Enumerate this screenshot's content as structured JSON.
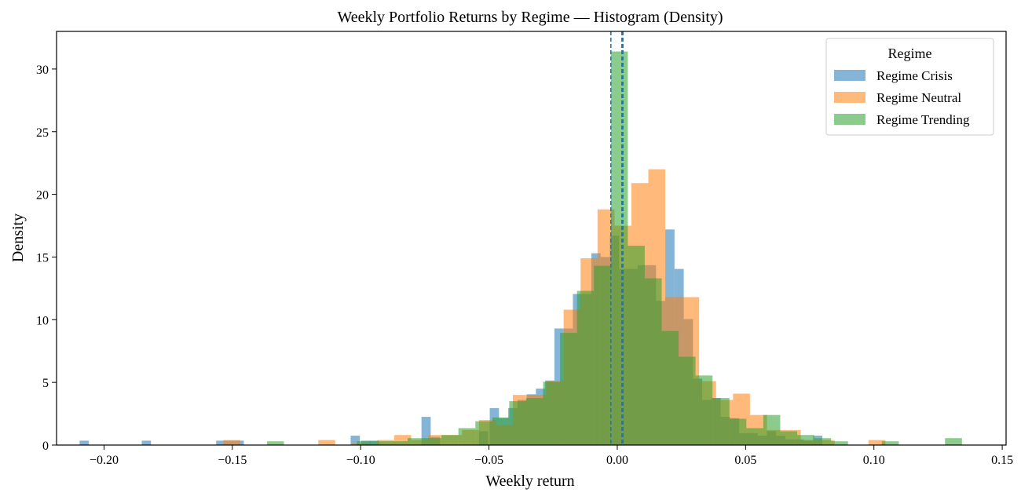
{
  "chart_data": {
    "type": "histogram",
    "title": "Weekly Portfolio Returns by Regime — Histogram (Density)",
    "xlabel": "Weekly return",
    "ylabel": "Density",
    "xlim": [
      -0.2185,
      0.1515
    ],
    "ylim": [
      0,
      33
    ],
    "xticks": [
      -0.2,
      -0.15,
      -0.1,
      -0.05,
      0.0,
      0.05,
      0.1,
      0.15
    ],
    "xtick_labels": [
      "−0.20",
      "−0.15",
      "−0.10",
      "−0.05",
      "0.00",
      "0.05",
      "0.10",
      "0.15"
    ],
    "yticks": [
      0,
      5,
      10,
      15,
      20,
      25,
      30
    ],
    "ytick_labels": [
      "0",
      "5",
      "10",
      "15",
      "20",
      "25",
      "30"
    ],
    "grid": false,
    "legend": {
      "title": "Regime",
      "position": "top-right"
    },
    "series": [
      {
        "name": "Regime Crisis",
        "color": "#1f77b4",
        "mean_line_x": -0.0025,
        "bins": [
          [
            -0.2095,
            -0.2059,
            0.35
          ],
          [
            -0.1853,
            -0.1817,
            0.35
          ],
          [
            -0.1563,
            -0.1527,
            0.35
          ],
          [
            -0.1527,
            -0.1491,
            0.35
          ],
          [
            -0.1491,
            -0.1455,
            0.35
          ],
          [
            -0.1039,
            -0.1003,
            0.75
          ],
          [
            -0.0999,
            -0.0963,
            0.35
          ],
          [
            -0.0965,
            -0.0929,
            0.35
          ],
          [
            -0.0763,
            -0.0727,
            2.25
          ],
          [
            -0.0727,
            -0.0691,
            0.65
          ],
          [
            -0.0539,
            -0.0503,
            1.1
          ],
          [
            -0.0497,
            -0.0461,
            2.95
          ],
          [
            -0.0461,
            -0.0425,
            2.15
          ],
          [
            -0.0425,
            -0.0389,
            2.95
          ],
          [
            -0.0389,
            -0.0353,
            3.6
          ],
          [
            -0.0353,
            -0.0317,
            4.05
          ],
          [
            -0.0317,
            -0.0281,
            4.5
          ],
          [
            -0.0281,
            -0.0245,
            5.15
          ],
          [
            -0.0245,
            -0.0209,
            9.3
          ],
          [
            -0.0209,
            -0.0173,
            9.3
          ],
          [
            -0.0173,
            -0.0137,
            12.05
          ],
          [
            -0.0137,
            -0.0101,
            12.05
          ],
          [
            -0.0101,
            -0.0065,
            15.3
          ],
          [
            -0.0065,
            -0.0029,
            15.0
          ],
          [
            -0.0029,
            0.0007,
            16.7
          ],
          [
            0.0007,
            0.0043,
            14.05
          ],
          [
            0.0043,
            0.0079,
            14.05
          ],
          [
            0.0079,
            0.0115,
            14.35
          ],
          [
            0.0115,
            0.0151,
            14.35
          ],
          [
            0.0151,
            0.0187,
            11.5
          ],
          [
            0.0187,
            0.0223,
            17.2
          ],
          [
            0.0223,
            0.0259,
            14.05
          ],
          [
            0.0259,
            0.0295,
            10.05
          ],
          [
            0.0295,
            0.0331,
            5.3
          ],
          [
            0.0331,
            0.0367,
            3.6
          ],
          [
            0.0367,
            0.0403,
            3.75
          ],
          [
            0.0403,
            0.0439,
            2.25
          ],
          [
            0.0439,
            0.0475,
            2.15
          ],
          [
            0.0475,
            0.0511,
            0.95
          ],
          [
            0.0511,
            0.0547,
            0.95
          ],
          [
            0.0547,
            0.0583,
            0.75
          ],
          [
            0.0583,
            0.0619,
            1.1
          ],
          [
            0.0619,
            0.0655,
            0.75
          ],
          [
            0.0655,
            0.0691,
            0.45
          ],
          [
            0.0691,
            0.0727,
            0.45
          ],
          [
            0.0727,
            0.0763,
            0.35
          ],
          [
            0.0763,
            0.0799,
            0.75
          ]
        ]
      },
      {
        "name": "Regime Neutral",
        "color": "#ff7f0e",
        "mean_line_x": 0.0018,
        "bins": [
          [
            -0.1535,
            -0.1469,
            0.4
          ],
          [
            -0.1165,
            -0.1099,
            0.4
          ],
          [
            -0.1035,
            -0.0969,
            0.15
          ],
          [
            -0.0935,
            -0.0869,
            0.4
          ],
          [
            -0.0869,
            -0.0803,
            0.8
          ],
          [
            -0.0803,
            -0.0737,
            0.4
          ],
          [
            -0.0737,
            -0.0671,
            0.8
          ],
          [
            -0.0671,
            -0.0605,
            0.8
          ],
          [
            -0.0605,
            -0.0539,
            1.2
          ],
          [
            -0.0539,
            -0.0473,
            2.0
          ],
          [
            -0.0473,
            -0.0407,
            1.6
          ],
          [
            -0.0407,
            -0.0341,
            4.0
          ],
          [
            -0.0341,
            -0.0275,
            4.0
          ],
          [
            -0.0275,
            -0.0209,
            5.1
          ],
          [
            -0.0209,
            -0.0143,
            10.8
          ],
          [
            -0.0143,
            -0.0077,
            14.9
          ],
          [
            -0.0077,
            -0.0011,
            18.8
          ],
          [
            -0.0011,
            0.0055,
            17.5
          ],
          [
            0.0055,
            0.0121,
            20.9
          ],
          [
            0.0121,
            0.0187,
            22.0
          ],
          [
            0.0187,
            0.0253,
            11.8
          ],
          [
            0.0253,
            0.0319,
            11.8
          ],
          [
            0.0319,
            0.0385,
            5.1
          ],
          [
            0.0385,
            0.0451,
            3.6
          ],
          [
            0.0451,
            0.0517,
            4.1
          ],
          [
            0.0517,
            0.0583,
            2.4
          ],
          [
            0.0583,
            0.0649,
            1.2
          ],
          [
            0.0649,
            0.0715,
            1.2
          ],
          [
            0.0715,
            0.0781,
            0.4
          ],
          [
            0.0781,
            0.0847,
            0.4
          ],
          [
            0.0979,
            0.1045,
            0.4
          ]
        ]
      },
      {
        "name": "Regime Trending",
        "color": "#2ca02c",
        "mean_line_x": 0.0022,
        "bins": [
          [
            -0.1365,
            -0.1299,
            0.3
          ],
          [
            -0.1015,
            -0.0949,
            0.3
          ],
          [
            -0.0949,
            -0.0883,
            0.3
          ],
          [
            -0.0883,
            -0.0817,
            0.3
          ],
          [
            -0.0817,
            -0.0751,
            0.55
          ],
          [
            -0.0751,
            -0.0685,
            0.55
          ],
          [
            -0.0685,
            -0.0619,
            0.8
          ],
          [
            -0.0619,
            -0.0553,
            1.35
          ],
          [
            -0.0553,
            -0.0487,
            1.9
          ],
          [
            -0.0487,
            -0.0421,
            2.2
          ],
          [
            -0.0421,
            -0.0355,
            3.5
          ],
          [
            -0.0355,
            -0.0289,
            3.75
          ],
          [
            -0.0289,
            -0.0223,
            5.05
          ],
          [
            -0.0223,
            -0.0157,
            8.95
          ],
          [
            -0.0157,
            -0.0091,
            12.3
          ],
          [
            -0.0091,
            -0.0025,
            14.3
          ],
          [
            -0.0025,
            0.0041,
            31.4
          ],
          [
            0.0041,
            0.0107,
            15.9
          ],
          [
            0.0107,
            0.0173,
            13.3
          ],
          [
            0.0173,
            0.0239,
            9.1
          ],
          [
            0.0239,
            0.0305,
            7.05
          ],
          [
            0.0305,
            0.0371,
            5.55
          ],
          [
            0.0371,
            0.0437,
            3.75
          ],
          [
            0.0437,
            0.0503,
            2.1
          ],
          [
            0.0503,
            0.0569,
            1.35
          ],
          [
            0.0569,
            0.0635,
            2.4
          ],
          [
            0.0635,
            0.0701,
            1.1
          ],
          [
            0.0701,
            0.0767,
            0.8
          ],
          [
            0.0767,
            0.0833,
            0.55
          ],
          [
            0.0833,
            0.0899,
            0.3
          ],
          [
            0.1031,
            0.1097,
            0.3
          ],
          [
            0.1277,
            0.1343,
            0.55
          ]
        ]
      }
    ]
  }
}
